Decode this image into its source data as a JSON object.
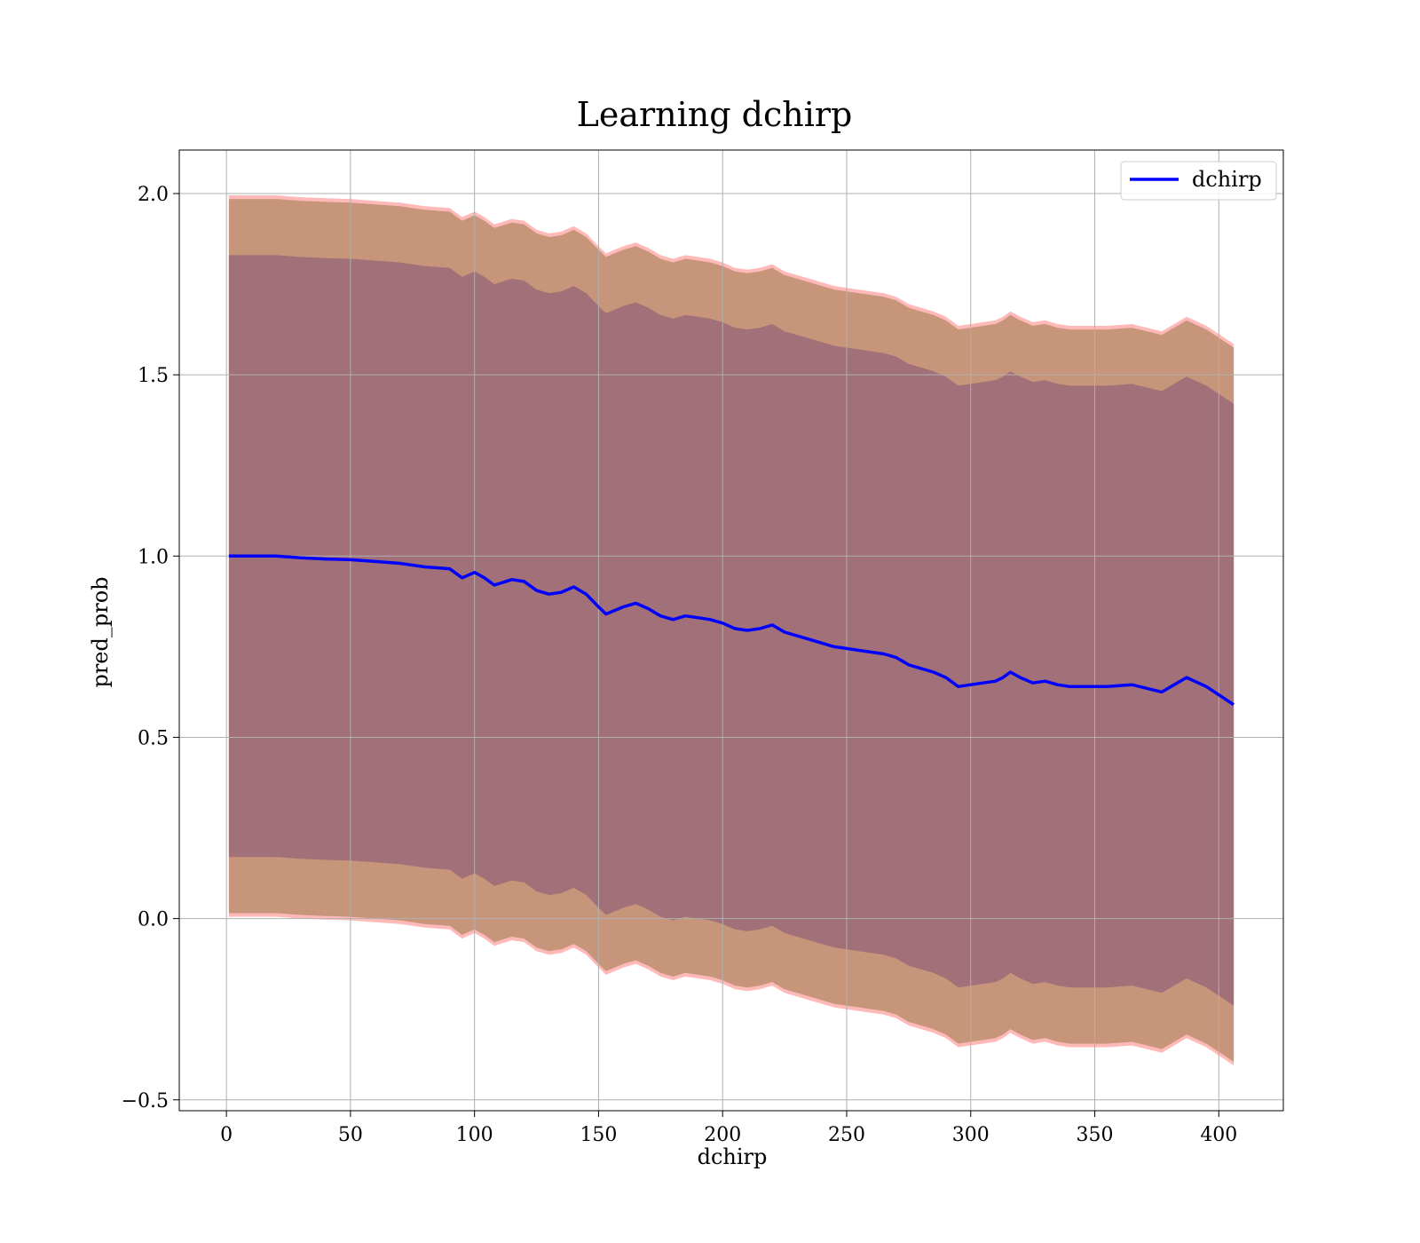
{
  "chart_data": {
    "type": "area",
    "title": "Learning dchirp",
    "xlabel": "dchirp",
    "ylabel": "pred_prob",
    "xlim": [
      -19,
      426
    ],
    "ylim": [
      -0.53,
      2.12
    ],
    "xticks": [
      0,
      50,
      100,
      150,
      200,
      250,
      300,
      350,
      400
    ],
    "yticks": [
      -0.5,
      0.0,
      0.5,
      1.0,
      1.5,
      2.0
    ],
    "ytick_labels": [
      "−0.5",
      "0.0",
      "0.5",
      "1.0",
      "1.5",
      "2.0"
    ],
    "grid": true,
    "legend_position": "top-right",
    "series": [
      {
        "name": "dchirp",
        "color": "#0000ff",
        "x": [
          1,
          10,
          20,
          30,
          40,
          50,
          60,
          70,
          80,
          90,
          95,
          100,
          104,
          108,
          115,
          120,
          125,
          130,
          135,
          140,
          145,
          150,
          153,
          160,
          165,
          170,
          175,
          180,
          185,
          190,
          195,
          200,
          205,
          210,
          215,
          220,
          225,
          230,
          235,
          240,
          245,
          250,
          255,
          260,
          265,
          270,
          275,
          280,
          285,
          290,
          295,
          300,
          305,
          310,
          313,
          316,
          320,
          325,
          330,
          335,
          340,
          350,
          355,
          365,
          377,
          387,
          395,
          406
        ],
        "values": [
          1.0,
          1.0,
          1.0,
          0.995,
          0.992,
          0.99,
          0.985,
          0.98,
          0.97,
          0.965,
          0.94,
          0.955,
          0.94,
          0.92,
          0.935,
          0.93,
          0.905,
          0.895,
          0.9,
          0.915,
          0.895,
          0.86,
          0.84,
          0.86,
          0.87,
          0.855,
          0.835,
          0.825,
          0.835,
          0.83,
          0.825,
          0.815,
          0.8,
          0.795,
          0.8,
          0.81,
          0.79,
          0.78,
          0.77,
          0.76,
          0.75,
          0.745,
          0.74,
          0.735,
          0.73,
          0.72,
          0.7,
          0.69,
          0.68,
          0.665,
          0.64,
          0.645,
          0.65,
          0.655,
          0.665,
          0.68,
          0.665,
          0.65,
          0.655,
          0.645,
          0.64,
          0.64,
          0.64,
          0.645,
          0.625,
          0.665,
          0.64,
          0.59
        ]
      }
    ],
    "bands": [
      {
        "color": "#ff8080",
        "opacity": 0.55,
        "half_width": 0.995
      },
      {
        "color": "#c79579",
        "opacity": 1.0,
        "half_width": 0.985
      },
      {
        "color": "#a17079",
        "opacity": 1.0,
        "half_width": 0.83
      }
    ]
  }
}
